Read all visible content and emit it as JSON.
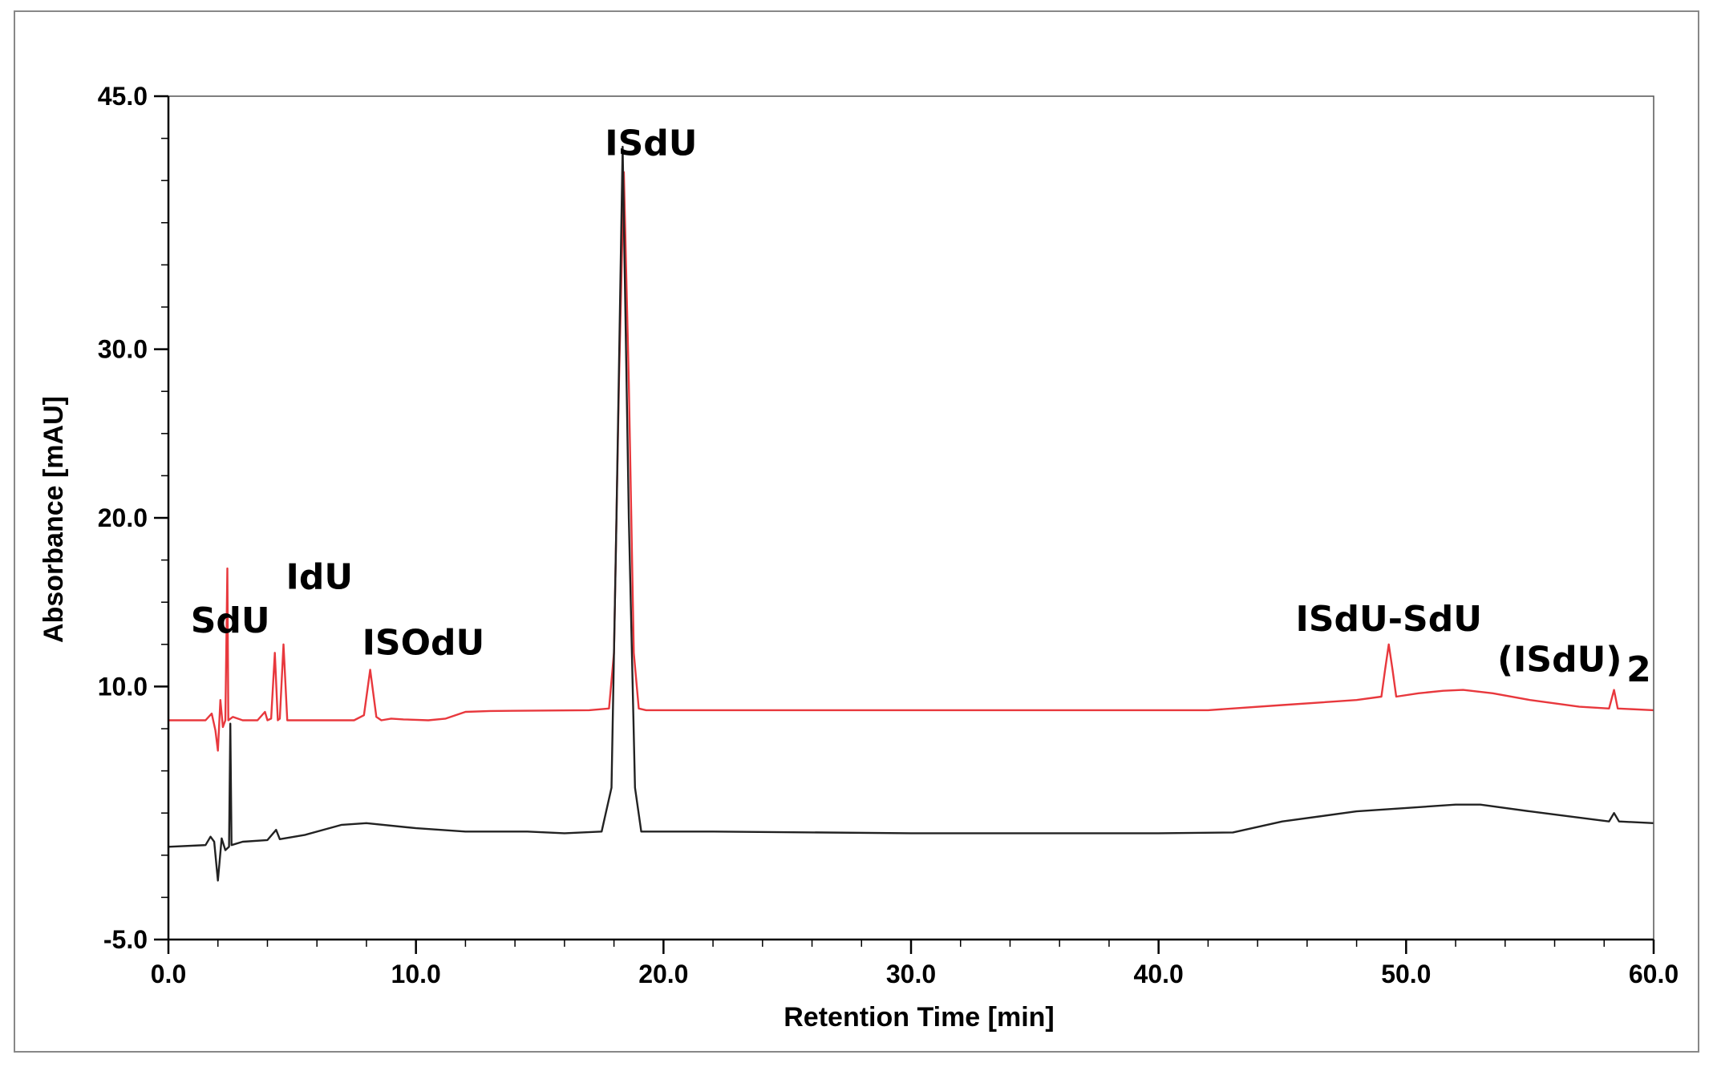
{
  "chart_data": {
    "type": "line",
    "xlabel": "Retention Time [min]",
    "ylabel": "Absorbance [mAU]",
    "xlim": [
      0,
      60
    ],
    "ylim": [
      -5,
      45
    ],
    "x_ticks": [
      "0.0",
      "10.0",
      "20.0",
      "30.0",
      "40.0",
      "50.0",
      "60.0"
    ],
    "y_ticks": [
      "-5.0",
      "10.0",
      "20.0",
      "30.0",
      "45.0"
    ],
    "grid": false,
    "legend": "none",
    "series": [
      {
        "color": "#e8383d",
        "points": [
          [
            0.0,
            8.0
          ],
          [
            1.5,
            8.0
          ],
          [
            1.75,
            8.4
          ],
          [
            1.9,
            7.4
          ],
          [
            2.0,
            6.2
          ],
          [
            2.1,
            9.2
          ],
          [
            2.2,
            7.6
          ],
          [
            2.3,
            8.0
          ],
          [
            2.38,
            17.0
          ],
          [
            2.42,
            8.0
          ],
          [
            2.6,
            8.2
          ],
          [
            3.0,
            8.0
          ],
          [
            3.6,
            8.0
          ],
          [
            3.9,
            8.5
          ],
          [
            4.0,
            8.0
          ],
          [
            4.15,
            8.1
          ],
          [
            4.3,
            12.0
          ],
          [
            4.42,
            8.0
          ],
          [
            4.5,
            8.1
          ],
          [
            4.65,
            12.5
          ],
          [
            4.8,
            8.0
          ],
          [
            7.5,
            8.0
          ],
          [
            7.9,
            8.3
          ],
          [
            8.15,
            11.0
          ],
          [
            8.4,
            8.2
          ],
          [
            8.6,
            8.0
          ],
          [
            9.0,
            8.1
          ],
          [
            9.5,
            8.05
          ],
          [
            10.5,
            8.0
          ],
          [
            11.2,
            8.1
          ],
          [
            12.0,
            8.5
          ],
          [
            13.0,
            8.55
          ],
          [
            17.0,
            8.6
          ],
          [
            17.8,
            8.7
          ],
          [
            18.0,
            12.0
          ],
          [
            18.2,
            28.0
          ],
          [
            18.4,
            40.5
          ],
          [
            18.6,
            28.0
          ],
          [
            18.8,
            12.0
          ],
          [
            19.0,
            8.7
          ],
          [
            19.3,
            8.6
          ],
          [
            25.0,
            8.6
          ],
          [
            35.0,
            8.6
          ],
          [
            42.0,
            8.6
          ],
          [
            45.0,
            8.9
          ],
          [
            48.0,
            9.2
          ],
          [
            49.0,
            9.4
          ],
          [
            49.15,
            11.0
          ],
          [
            49.3,
            12.5
          ],
          [
            49.45,
            11.0
          ],
          [
            49.6,
            9.4
          ],
          [
            50.5,
            9.6
          ],
          [
            51.5,
            9.75
          ],
          [
            52.3,
            9.8
          ],
          [
            53.5,
            9.6
          ],
          [
            55.0,
            9.2
          ],
          [
            57.0,
            8.8
          ],
          [
            58.2,
            8.7
          ],
          [
            58.4,
            9.8
          ],
          [
            58.55,
            8.7
          ],
          [
            60.0,
            8.6
          ]
        ]
      },
      {
        "color": "#222222",
        "points": [
          [
            0.0,
            0.5
          ],
          [
            1.5,
            0.6
          ],
          [
            1.7,
            1.1
          ],
          [
            1.85,
            0.8
          ],
          [
            2.0,
            -1.5
          ],
          [
            2.15,
            1.0
          ],
          [
            2.3,
            0.3
          ],
          [
            2.45,
            0.5
          ],
          [
            2.5,
            7.8
          ],
          [
            2.55,
            0.6
          ],
          [
            3.0,
            0.8
          ],
          [
            4.0,
            0.9
          ],
          [
            4.35,
            1.5
          ],
          [
            4.5,
            0.95
          ],
          [
            5.5,
            1.2
          ],
          [
            7.0,
            1.8
          ],
          [
            8.0,
            1.9
          ],
          [
            10.0,
            1.6
          ],
          [
            12.0,
            1.4
          ],
          [
            14.5,
            1.4
          ],
          [
            16.0,
            1.3
          ],
          [
            17.5,
            1.4
          ],
          [
            17.9,
            4.0
          ],
          [
            18.1,
            20.0
          ],
          [
            18.35,
            42.0
          ],
          [
            18.6,
            20.0
          ],
          [
            18.85,
            4.0
          ],
          [
            19.1,
            1.4
          ],
          [
            22.0,
            1.4
          ],
          [
            30.0,
            1.3
          ],
          [
            40.0,
            1.3
          ],
          [
            43.0,
            1.35
          ],
          [
            45.0,
            2.0
          ],
          [
            48.0,
            2.6
          ],
          [
            50.0,
            2.8
          ],
          [
            52.0,
            3.0
          ],
          [
            53.0,
            3.0
          ],
          [
            55.0,
            2.6
          ],
          [
            58.2,
            2.0
          ],
          [
            58.4,
            2.5
          ],
          [
            58.6,
            2.0
          ],
          [
            60.0,
            1.9
          ]
        ]
      }
    ],
    "annotations": [
      {
        "text": "SdU",
        "x": 2.5,
        "y": 13.2
      },
      {
        "text": "IdU",
        "x": 6.1,
        "y": 15.8
      },
      {
        "text": "ISOdU",
        "x": 10.3,
        "y": 11.9
      },
      {
        "text": "ISdU",
        "x": 19.5,
        "y": 41.5
      },
      {
        "text": "ISdU-SdU",
        "x": 49.3,
        "y": 13.3
      },
      {
        "text": "(ISdU)",
        "x": 56.2,
        "y": 10.9
      },
      {
        "text": "2",
        "x": 59.4,
        "y": 10.3
      }
    ]
  }
}
